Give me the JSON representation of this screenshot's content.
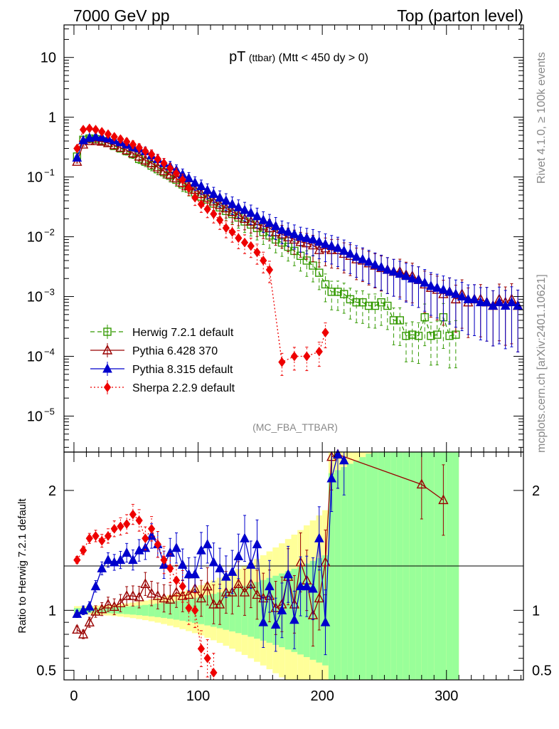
{
  "header": {
    "left": "7000 GeV pp",
    "right": "Top (parton level)"
  },
  "side_labels": {
    "right_top": "Rivet 4.1.0, ≥ 100k events",
    "right_bottom": "mcplots.cern.ch [arXiv:2401.10621]"
  },
  "chart_data": [
    {
      "type": "line",
      "panel": "main",
      "title_main": "pT",
      "title_small": "(ttbar)",
      "title_cut": "(Mtt < 450 dy > 0)",
      "watermark": "(MC_FBA_TTBAR)",
      "yscale": "log",
      "xlim": [
        -8,
        362
      ],
      "ylim": [
        2.5e-06,
        35
      ],
      "y_ticks": [
        {
          "v": 10,
          "label": "10"
        },
        {
          "v": 1,
          "label": "1"
        },
        {
          "v": 0.1,
          "label": "10",
          "exp": "−1"
        },
        {
          "v": 0.01,
          "label": "10",
          "exp": "−2"
        },
        {
          "v": 0.001,
          "label": "10",
          "exp": "−3"
        },
        {
          "v": 0.0001,
          "label": "10",
          "exp": "−4"
        },
        {
          "v": 1e-05,
          "label": "10",
          "exp": "−5"
        }
      ],
      "series": [
        {
          "name": "Herwig 7.2.1 default",
          "color": "#339900",
          "marker": "open-square",
          "line": "dashed",
          "x": [
            2.5,
            7.5,
            12.5,
            17.5,
            22.5,
            27.5,
            32.5,
            37.5,
            42.5,
            47.5,
            52.5,
            57.5,
            62.5,
            67.5,
            72.5,
            77.5,
            82.5,
            87.5,
            92.5,
            97.5,
            102.5,
            107.5,
            112.5,
            117.5,
            122.5,
            127.5,
            132.5,
            137.5,
            142.5,
            147.5,
            152.5,
            157.5,
            162.5,
            167.5,
            172.5,
            177.5,
            182.5,
            187.5,
            192.5,
            197.5,
            202.5,
            207.5,
            212.5,
            217.5,
            222.5,
            227.5,
            232.5,
            237.5,
            242.5,
            247.5,
            252.5,
            257.5,
            262.5,
            267.5,
            272.5,
            277.5,
            282.5,
            287.5,
            292.5,
            297.5,
            302.5,
            307.5
          ],
          "y": [
            0.22,
            0.42,
            0.44,
            0.43,
            0.4,
            0.37,
            0.33,
            0.3,
            0.27,
            0.24,
            0.2,
            0.18,
            0.155,
            0.135,
            0.12,
            0.105,
            0.09,
            0.075,
            0.064,
            0.055,
            0.047,
            0.042,
            0.036,
            0.031,
            0.027,
            0.024,
            0.021,
            0.018,
            0.016,
            0.014,
            0.012,
            0.0105,
            0.009,
            0.008,
            0.0068,
            0.0058,
            0.0048,
            0.004,
            0.0033,
            0.0025,
            0.0016,
            0.0012,
            0.0012,
            0.0011,
            0.0009,
            0.0008,
            0.0008,
            0.0007,
            0.0007,
            0.0008,
            0.0007,
            0.0004,
            0.0004,
            0.00022,
            0.00023,
            0.00022,
            0.00045,
            0.00022,
            0.00023,
            0.00045,
            0.00022,
            0.00023
          ]
        },
        {
          "name": "Pythia 6.428 370",
          "color": "#990000",
          "marker": "open-triangle",
          "line": "solid",
          "x": [
            2.5,
            7.5,
            12.5,
            17.5,
            22.5,
            27.5,
            32.5,
            37.5,
            42.5,
            47.5,
            52.5,
            57.5,
            62.5,
            67.5,
            72.5,
            77.5,
            82.5,
            87.5,
            92.5,
            97.5,
            102.5,
            107.5,
            112.5,
            117.5,
            122.5,
            127.5,
            132.5,
            137.5,
            142.5,
            147.5,
            152.5,
            157.5,
            162.5,
            167.5,
            172.5,
            177.5,
            182.5,
            187.5,
            192.5,
            197.5,
            202.5,
            207.5,
            212.5,
            217.5,
            222.5,
            227.5,
            232.5,
            237.5,
            242.5,
            247.5,
            252.5,
            257.5,
            262.5,
            267.5,
            272.5,
            277.5,
            282.5,
            287.5,
            292.5,
            297.5,
            302.5,
            307.5,
            312.5,
            317.5,
            322.5,
            327.5,
            332.5,
            337.5,
            342.5,
            347.5,
            352.5,
            357.5
          ],
          "y": [
            0.18,
            0.35,
            0.4,
            0.4,
            0.39,
            0.37,
            0.34,
            0.31,
            0.28,
            0.25,
            0.22,
            0.19,
            0.17,
            0.145,
            0.125,
            0.11,
            0.095,
            0.08,
            0.07,
            0.061,
            0.052,
            0.045,
            0.039,
            0.034,
            0.03,
            0.026,
            0.023,
            0.02,
            0.018,
            0.016,
            0.015,
            0.014,
            0.012,
            0.011,
            0.0098,
            0.009,
            0.0082,
            0.0078,
            0.0072,
            0.006,
            0.0064,
            0.006,
            0.006,
            0.0052,
            0.0048,
            0.0042,
            0.004,
            0.0036,
            0.0033,
            0.003,
            0.0028,
            0.0026,
            0.0026,
            0.0023,
            0.0022,
            0.0019,
            0.0016,
            0.0014,
            0.0013,
            0.0011,
            0.0012,
            0.0009,
            0.0011,
            0.0008,
            0.0009,
            0.0009,
            0.0008,
            0.0007,
            0.0009,
            0.0008,
            0.0009,
            0.0007
          ]
        },
        {
          "name": "Pythia 8.315 default",
          "color": "#0000cc",
          "marker": "filled-triangle",
          "line": "solid",
          "x": [
            2.5,
            7.5,
            12.5,
            17.5,
            22.5,
            27.5,
            32.5,
            37.5,
            42.5,
            47.5,
            52.5,
            57.5,
            62.5,
            67.5,
            72.5,
            77.5,
            82.5,
            87.5,
            92.5,
            97.5,
            102.5,
            107.5,
            112.5,
            117.5,
            122.5,
            127.5,
            132.5,
            137.5,
            142.5,
            147.5,
            152.5,
            157.5,
            162.5,
            167.5,
            172.5,
            177.5,
            182.5,
            187.5,
            192.5,
            197.5,
            202.5,
            207.5,
            212.5,
            217.5,
            222.5,
            227.5,
            232.5,
            237.5,
            242.5,
            247.5,
            252.5,
            257.5,
            262.5,
            267.5,
            272.5,
            277.5,
            282.5,
            287.5,
            292.5,
            297.5,
            302.5,
            307.5,
            312.5,
            317.5,
            322.5,
            327.5,
            332.5,
            337.5,
            342.5,
            347.5,
            352.5,
            357.5
          ],
          "y": [
            0.21,
            0.41,
            0.45,
            0.47,
            0.46,
            0.44,
            0.41,
            0.38,
            0.35,
            0.32,
            0.3,
            0.27,
            0.23,
            0.2,
            0.17,
            0.15,
            0.13,
            0.11,
            0.095,
            0.08,
            0.07,
            0.06,
            0.052,
            0.045,
            0.04,
            0.035,
            0.031,
            0.028,
            0.025,
            0.022,
            0.019,
            0.017,
            0.015,
            0.013,
            0.012,
            0.011,
            0.01,
            0.0095,
            0.009,
            0.0082,
            0.0075,
            0.007,
            0.0065,
            0.0058,
            0.0052,
            0.0046,
            0.0042,
            0.0038,
            0.0034,
            0.0031,
            0.0028,
            0.0026,
            0.0024,
            0.0022,
            0.002,
            0.0019,
            0.0017,
            0.0015,
            0.0014,
            0.0013,
            0.0012,
            0.0011,
            0.001,
            0.0009,
            0.0009,
            0.0008,
            0.0008,
            0.0007,
            0.0008,
            0.0007,
            0.0008,
            0.0007
          ]
        },
        {
          "name": "Sherpa 2.2.9 default",
          "color": "#ee0000",
          "marker": "filled-diamond",
          "line": "dotted",
          "x": [
            2.5,
            7.5,
            12.5,
            17.5,
            22.5,
            27.5,
            32.5,
            37.5,
            42.5,
            47.5,
            52.5,
            57.5,
            62.5,
            67.5,
            72.5,
            77.5,
            82.5,
            87.5,
            92.5,
            97.5,
            102.5,
            107.5,
            112.5,
            117.5,
            122.5,
            127.5,
            132.5,
            137.5,
            142.5,
            147.5,
            152.5,
            157.5,
            167.5,
            177.5,
            187.5,
            197.5,
            202.5
          ],
          "y": [
            0.3,
            0.62,
            0.65,
            0.62,
            0.57,
            0.52,
            0.47,
            0.43,
            0.39,
            0.35,
            0.31,
            0.27,
            0.24,
            0.2,
            0.17,
            0.14,
            0.115,
            0.09,
            0.065,
            0.045,
            0.035,
            0.029,
            0.024,
            0.019,
            0.014,
            0.012,
            0.0095,
            0.008,
            0.007,
            0.0055,
            0.004,
            0.0028,
            8e-05,
            0.0001,
            0.0001,
            0.00012,
            0.00025
          ]
        }
      ]
    },
    {
      "type": "line",
      "panel": "ratio",
      "ylabel": "Ratio to Herwig 7.2.1 default",
      "ylim": [
        0.42,
        2.32
      ],
      "xlim": [
        -8,
        362
      ],
      "x_ticks": [
        0,
        100,
        200,
        300
      ],
      "y_ticks": [
        {
          "v": 2,
          "label": "2"
        },
        {
          "v": 1,
          "label": "1"
        },
        {
          "v": 0.5,
          "label": "0.5"
        }
      ],
      "bands": {
        "inner_color": "#99ff99",
        "outer_color": "#ffff99"
      },
      "series": [
        {
          "name": "Pythia 6.428 370",
          "color": "#990000",
          "marker": "open-triangle",
          "line": "solid",
          "x": [
            2.5,
            7.5,
            12.5,
            17.5,
            22.5,
            27.5,
            32.5,
            37.5,
            42.5,
            47.5,
            52.5,
            57.5,
            62.5,
            67.5,
            72.5,
            77.5,
            82.5,
            87.5,
            92.5,
            97.5,
            102.5,
            107.5,
            112.5,
            117.5,
            122.5,
            127.5,
            132.5,
            137.5,
            142.5,
            147.5,
            152.5,
            157.5,
            162.5,
            167.5,
            172.5,
            177.5,
            182.5,
            187.5,
            192.5,
            197.5,
            202.5,
            207.5,
            212.5,
            280,
            297.5
          ],
          "y": [
            0.84,
            0.8,
            0.9,
            0.99,
            1.01,
            1.05,
            1.03,
            1.06,
            1.12,
            1.12,
            1.11,
            1.22,
            1.14,
            1.12,
            1.1,
            1.09,
            1.15,
            1.12,
            1.13,
            1.18,
            1.1,
            1.2,
            1.05,
            1.05,
            1.15,
            1.15,
            1.22,
            1.15,
            1.22,
            1.13,
            1.1,
            1.12,
            1.02,
            1.05,
            1.28,
            1.05,
            1.4,
            1.25,
            0.96,
            1.1,
            1.4,
            2.28,
            2.3,
            2.05,
            1.92
          ]
        },
        {
          "name": "Pythia 8.315 default",
          "color": "#0000cc",
          "marker": "filled-triangle",
          "line": "solid",
          "x": [
            2.5,
            7.5,
            12.5,
            17.5,
            22.5,
            27.5,
            32.5,
            37.5,
            42.5,
            47.5,
            52.5,
            57.5,
            62.5,
            67.5,
            72.5,
            77.5,
            82.5,
            87.5,
            92.5,
            97.5,
            102.5,
            107.5,
            112.5,
            117.5,
            122.5,
            127.5,
            132.5,
            137.5,
            142.5,
            147.5,
            152.5,
            157.5,
            162.5,
            167.5,
            172.5,
            177.5,
            182.5,
            187.5,
            192.5,
            197.5,
            202.5,
            207.5,
            212.5,
            217.5
          ],
          "y": [
            0.97,
            1.0,
            1.03,
            1.2,
            1.35,
            1.42,
            1.4,
            1.42,
            1.48,
            1.42,
            1.5,
            1.52,
            1.62,
            1.55,
            1.38,
            1.48,
            1.52,
            1.38,
            1.3,
            1.3,
            1.5,
            1.55,
            1.4,
            1.35,
            1.28,
            1.32,
            1.45,
            1.6,
            1.38,
            1.55,
            0.9,
            1.2,
            0.88,
            1.0,
            1.3,
            0.92,
            1.2,
            1.2,
            1.18,
            1.6,
            0.9,
            2.1,
            2.3,
            2.25
          ]
        },
        {
          "name": "Sherpa 2.2.9 default",
          "color": "#ee0000",
          "marker": "filled-diamond",
          "line": "dotted",
          "x": [
            2.5,
            7.5,
            12.5,
            17.5,
            22.5,
            27.5,
            32.5,
            37.5,
            42.5,
            47.5,
            52.5,
            57.5,
            62.5,
            67.5,
            72.5,
            77.5,
            82.5,
            87.5,
            92.5,
            97.5,
            102.5,
            107.5,
            112.5
          ],
          "y": [
            1.42,
            1.5,
            1.6,
            1.62,
            1.58,
            1.62,
            1.68,
            1.7,
            1.72,
            1.8,
            1.75,
            1.6,
            1.68,
            1.55,
            1.42,
            1.35,
            1.25,
            1.2,
            1.02,
            1.0,
            0.68,
            0.6,
            0.48
          ]
        }
      ]
    }
  ]
}
